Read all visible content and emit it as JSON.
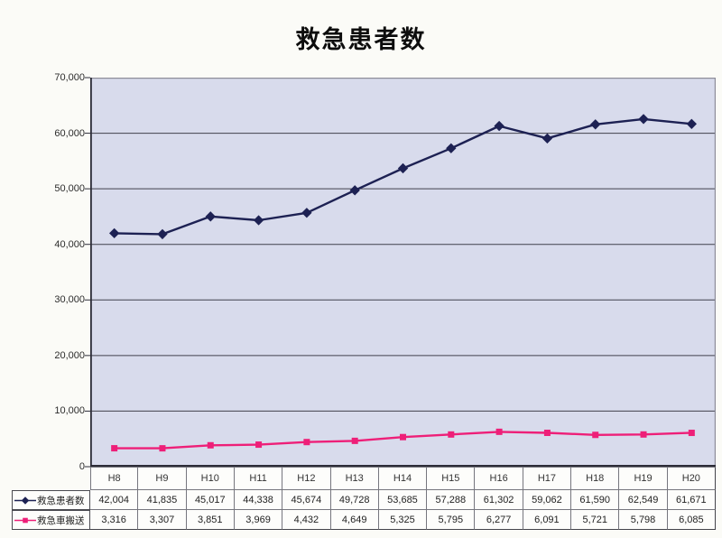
{
  "title": "救急患者数",
  "chart_data": {
    "type": "line",
    "title": "救急患者数",
    "categories": [
      "H8",
      "H9",
      "H10",
      "H11",
      "H12",
      "H13",
      "H14",
      "H15",
      "H16",
      "H17",
      "H18",
      "H19",
      "H20"
    ],
    "series": [
      {
        "name": "救急患者数",
        "marker": "diamond",
        "color": "#1d2153",
        "values": [
          42004,
          41835,
          45017,
          44338,
          45674,
          49728,
          53685,
          57288,
          61302,
          59062,
          61590,
          62549,
          61671
        ]
      },
      {
        "name": "救急車搬送",
        "marker": "square",
        "color": "#ee1f78",
        "values": [
          3316,
          3307,
          3851,
          3969,
          4432,
          4649,
          5325,
          5795,
          6277,
          6091,
          5721,
          5798,
          6085
        ]
      }
    ],
    "xlabel": "",
    "ylabel": "",
    "ylim": [
      0,
      70000
    ],
    "y_tick_interval": 10000,
    "y_tick_labels": [
      "0",
      "10,000",
      "20,000",
      "30,000",
      "40,000",
      "50,000",
      "60,000",
      "70,000"
    ],
    "grid": true,
    "gridlines": "horizontal",
    "legend_position": "table-left",
    "plot_bg": "#d8dbec",
    "gridline_color": "#41414d",
    "axis_color": "#2c2c38",
    "border_color": "#8d8d99",
    "table_shows_values": true
  }
}
